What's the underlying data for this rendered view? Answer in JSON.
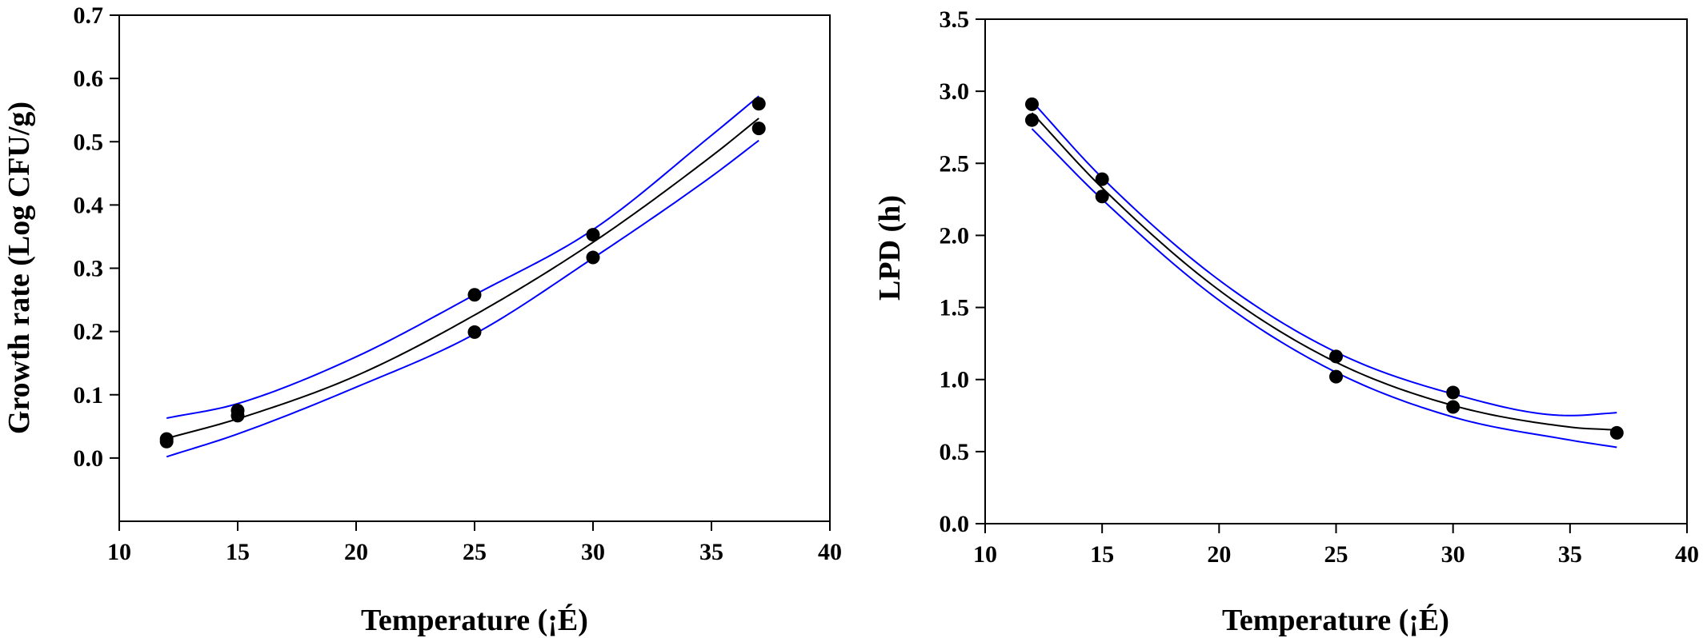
{
  "chart_data": [
    {
      "type": "scatter",
      "title": "",
      "xlabel": "Temperature (¡É)",
      "ylabel": "Growth rate (Log CFU/g)",
      "xlim": [
        10,
        40
      ],
      "ylim": [
        -0.1,
        0.7
      ],
      "xticks": [
        10,
        15,
        20,
        25,
        30,
        35,
        40
      ],
      "yticks": [
        0.0,
        0.1,
        0.2,
        0.3,
        0.4,
        0.5,
        0.6,
        0.7
      ],
      "ytick_decimals": 1,
      "grid": false,
      "points": [
        {
          "x": 12,
          "y": 0.03
        },
        {
          "x": 12,
          "y": 0.026
        },
        {
          "x": 15,
          "y": 0.075
        },
        {
          "x": 15,
          "y": 0.067
        },
        {
          "x": 25,
          "y": 0.258
        },
        {
          "x": 25,
          "y": 0.199
        },
        {
          "x": 30,
          "y": 0.353
        },
        {
          "x": 30,
          "y": 0.317
        },
        {
          "x": 37,
          "y": 0.56
        },
        {
          "x": 37,
          "y": 0.521
        }
      ],
      "fit_line": {
        "color": "#000000",
        "x": [
          12,
          15,
          20,
          25,
          30,
          35,
          37
        ],
        "y": [
          0.031,
          0.062,
          0.13,
          0.226,
          0.341,
          0.477,
          0.537
        ]
      },
      "confidence_bands": {
        "color": "#0000ff",
        "upper": {
          "x": [
            12,
            15,
            20,
            25,
            30,
            35,
            37
          ],
          "y": [
            0.063,
            0.086,
            0.16,
            0.258,
            0.361,
            0.51,
            0.572
          ]
        },
        "lower": {
          "x": [
            12,
            15,
            20,
            25,
            30,
            35,
            37
          ],
          "y": [
            0.002,
            0.038,
            0.112,
            0.196,
            0.316,
            0.445,
            0.502
          ]
        }
      }
    },
    {
      "type": "scatter",
      "title": "",
      "xlabel": "Temperature (¡É)",
      "ylabel": "LPD (h)",
      "xlim": [
        10,
        40
      ],
      "ylim": [
        0.0,
        3.5
      ],
      "xticks": [
        10,
        15,
        20,
        25,
        30,
        35,
        40
      ],
      "yticks": [
        0.0,
        0.5,
        1.0,
        1.5,
        2.0,
        2.5,
        3.0,
        3.5
      ],
      "ytick_decimals": 1,
      "grid": false,
      "points": [
        {
          "x": 12,
          "y": 2.91
        },
        {
          "x": 12,
          "y": 2.8
        },
        {
          "x": 15,
          "y": 2.39
        },
        {
          "x": 15,
          "y": 2.27
        },
        {
          "x": 25,
          "y": 1.16
        },
        {
          "x": 25,
          "y": 1.02
        },
        {
          "x": 30,
          "y": 0.91
        },
        {
          "x": 30,
          "y": 0.81
        },
        {
          "x": 37,
          "y": 0.63
        }
      ],
      "fit_line": {
        "color": "#000000",
        "x": [
          12,
          15,
          20,
          25,
          30,
          35,
          37
        ],
        "y": [
          2.85,
          2.33,
          1.62,
          1.12,
          0.82,
          0.67,
          0.65
        ]
      },
      "confidence_bands": {
        "color": "#0000ff",
        "upper": {
          "x": [
            12,
            15,
            20,
            25,
            30,
            35,
            37
          ],
          "y": [
            2.93,
            2.4,
            1.69,
            1.19,
            0.9,
            0.75,
            0.77
          ]
        },
        "lower": {
          "x": [
            12,
            15,
            20,
            25,
            30,
            35,
            37
          ],
          "y": [
            2.74,
            2.25,
            1.55,
            1.05,
            0.74,
            0.58,
            0.53
          ]
        }
      }
    }
  ]
}
